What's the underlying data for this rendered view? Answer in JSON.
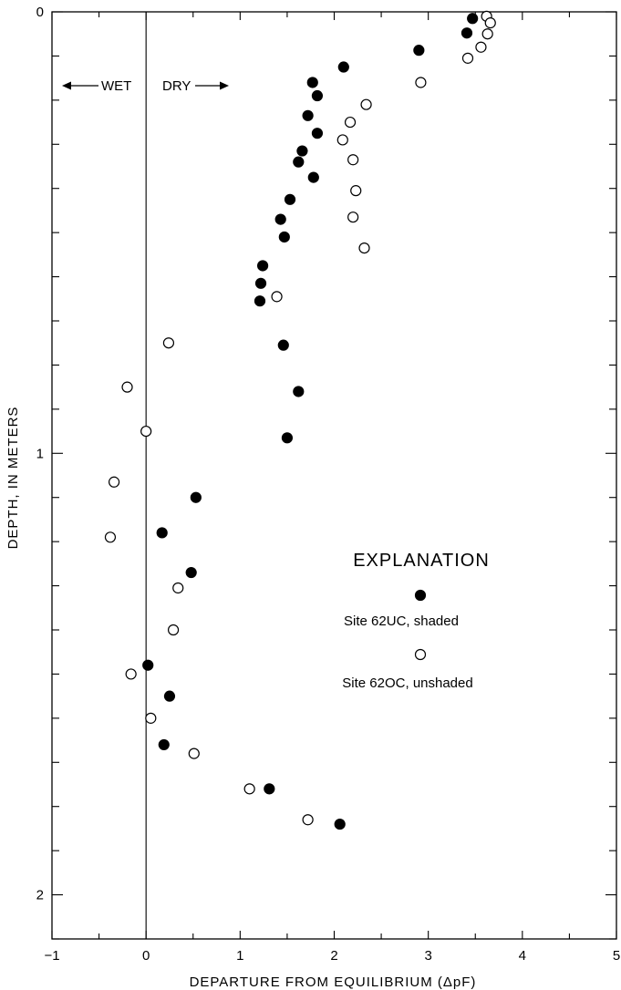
{
  "chart_data": {
    "type": "scatter",
    "xlabel": "DEPARTURE FROM EQUILIBRIUM (ΔpF)",
    "ylabel": "DEPTH, IN METERS",
    "xlim": [
      -1,
      5
    ],
    "ylim": [
      2.1,
      0
    ],
    "x_ticks": [
      -1,
      0,
      1,
      2,
      3,
      4,
      5
    ],
    "y_ticks": [
      0,
      1,
      2
    ],
    "direction_labels": {
      "wet": "WET",
      "dry": "DRY"
    },
    "legend": {
      "title": "EXPLANATION",
      "position": "right-center"
    },
    "series": [
      {
        "name": "Site 62UC, shaded",
        "marker": "filled-circle",
        "color": "#000000",
        "points": [
          [
            3.47,
            0.015
          ],
          [
            3.41,
            0.048
          ],
          [
            2.9,
            0.087
          ],
          [
            2.1,
            0.125
          ],
          [
            1.77,
            0.16
          ],
          [
            1.82,
            0.19
          ],
          [
            1.72,
            0.235
          ],
          [
            1.82,
            0.275
          ],
          [
            1.66,
            0.315
          ],
          [
            1.62,
            0.34
          ],
          [
            1.78,
            0.375
          ],
          [
            1.53,
            0.425
          ],
          [
            1.43,
            0.47
          ],
          [
            1.47,
            0.51
          ],
          [
            1.24,
            0.575
          ],
          [
            1.22,
            0.615
          ],
          [
            1.21,
            0.655
          ],
          [
            1.46,
            0.755
          ],
          [
            1.62,
            0.86
          ],
          [
            1.5,
            0.965
          ],
          [
            0.53,
            1.1
          ],
          [
            0.17,
            1.18
          ],
          [
            0.48,
            1.27
          ],
          [
            0.02,
            1.48
          ],
          [
            0.25,
            1.55
          ],
          [
            0.19,
            1.66
          ],
          [
            1.31,
            1.76
          ],
          [
            2.06,
            1.84
          ]
        ]
      },
      {
        "name": "Site 62OC, unshaded",
        "marker": "open-circle",
        "color": "#000000",
        "points": [
          [
            3.62,
            0.01
          ],
          [
            3.66,
            0.025
          ],
          [
            3.63,
            0.05
          ],
          [
            3.56,
            0.08
          ],
          [
            3.42,
            0.105
          ],
          [
            2.92,
            0.16
          ],
          [
            2.34,
            0.21
          ],
          [
            2.17,
            0.25
          ],
          [
            2.09,
            0.29
          ],
          [
            2.2,
            0.335
          ],
          [
            2.23,
            0.405
          ],
          [
            2.2,
            0.465
          ],
          [
            2.32,
            0.535
          ],
          [
            1.39,
            0.645
          ],
          [
            0.24,
            0.75
          ],
          [
            -0.2,
            0.85
          ],
          [
            0.0,
            0.95
          ],
          [
            -0.34,
            1.065
          ],
          [
            -0.38,
            1.19
          ],
          [
            0.34,
            1.305
          ],
          [
            0.29,
            1.4
          ],
          [
            -0.16,
            1.5
          ],
          [
            0.05,
            1.6
          ],
          [
            0.51,
            1.68
          ],
          [
            1.1,
            1.76
          ],
          [
            1.72,
            1.83
          ]
        ]
      }
    ]
  }
}
